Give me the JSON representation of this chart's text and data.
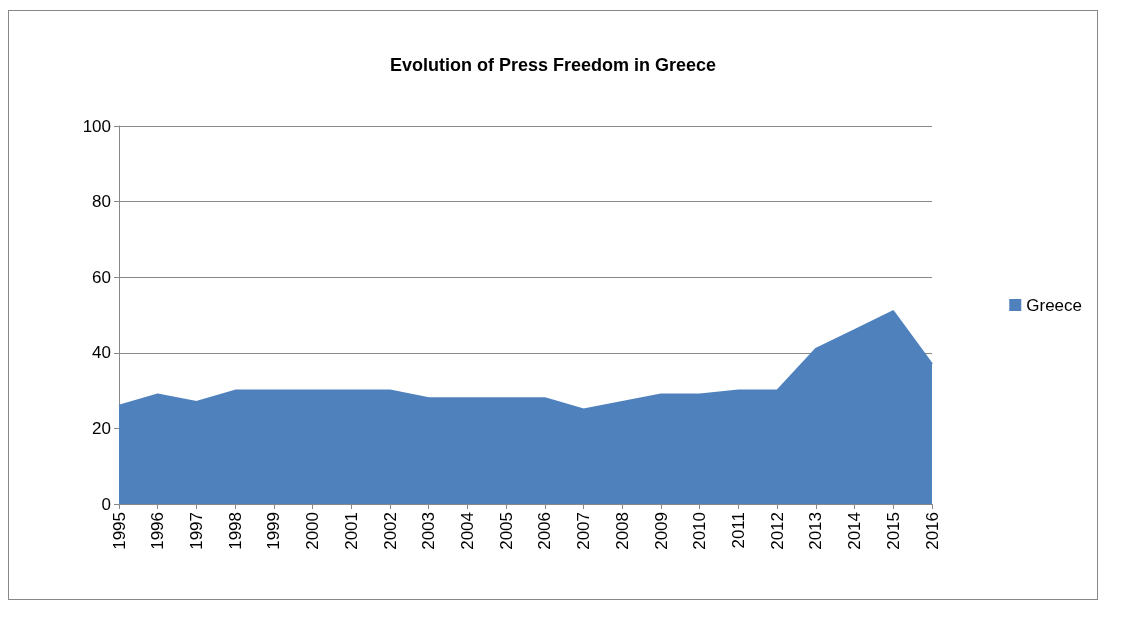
{
  "chart_data": {
    "type": "area",
    "title": "Evolution of Press Freedom in Greece",
    "categories": [
      "1995",
      "1996",
      "1997",
      "1998",
      "1999",
      "2000",
      "2001",
      "2002",
      "2003",
      "2004",
      "2005",
      "2006",
      "2007",
      "2008",
      "2009",
      "2010",
      "2011",
      "2012",
      "2013",
      "2014",
      "2015",
      "2016"
    ],
    "series": [
      {
        "name": "Greece",
        "color": "#4f81bd",
        "values": [
          26,
          29,
          27,
          30,
          30,
          30,
          30,
          30,
          28,
          28,
          28,
          28,
          25,
          27,
          29,
          29,
          30,
          30,
          41,
          46,
          51,
          37
        ]
      }
    ],
    "ylim": [
      0,
      100
    ],
    "yticks": [
      0,
      20,
      40,
      60,
      80,
      100
    ],
    "grid": "y",
    "legend": "right"
  }
}
